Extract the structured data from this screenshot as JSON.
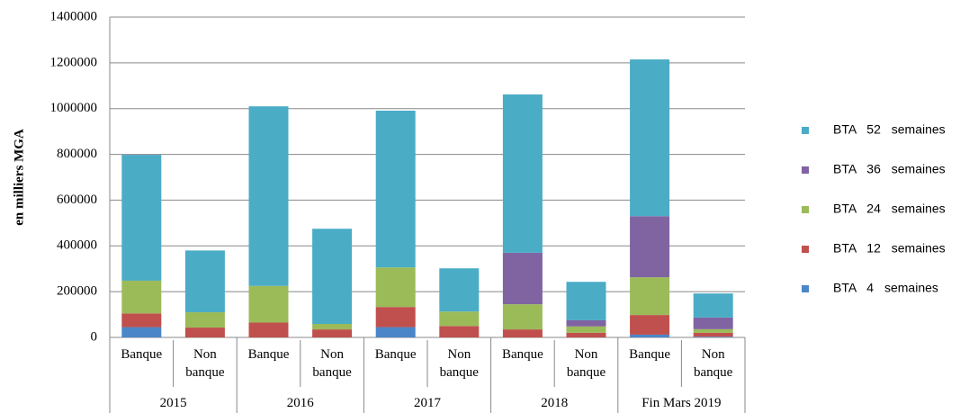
{
  "chart_data": {
    "type": "bar",
    "stacked": true,
    "y_label": "en milliers MGA",
    "categories": [
      "Banque",
      "Non banque",
      "Banque",
      "Non banque",
      "Banque",
      "Non banque",
      "Banque",
      "Non banque",
      "Banque",
      "Non banque"
    ],
    "groups": [
      "2015",
      "2016",
      "2017",
      "2018",
      "Fin Mars 2019"
    ],
    "series": [
      {
        "name": "BTA 4 semaines",
        "color": "#4a86c8",
        "values": [
          45000,
          0,
          0,
          0,
          45000,
          0,
          0,
          0,
          12000,
          3000
        ]
      },
      {
        "name": "BTA 12 semaines",
        "color": "#c0504d",
        "values": [
          60000,
          43000,
          65000,
          35000,
          88000,
          50000,
          35000,
          20000,
          86000,
          17000
        ]
      },
      {
        "name": "BTA 24 semaines",
        "color": "#9bbb59",
        "values": [
          143000,
          67000,
          160000,
          24000,
          173000,
          63000,
          110000,
          28000,
          165000,
          16000
        ]
      },
      {
        "name": "BTA 36 semaines",
        "color": "#8064a2",
        "values": [
          0,
          0,
          0,
          0,
          0,
          0,
          225000,
          27000,
          267000,
          51000
        ]
      },
      {
        "name": "BTA 52 semaines",
        "color": "#4bacc6",
        "values": [
          550000,
          270000,
          785000,
          416000,
          685000,
          189000,
          692000,
          168000,
          685000,
          105000
        ]
      }
    ],
    "ylim": [
      0,
      1400000
    ],
    "yticks": [
      0,
      200000,
      400000,
      600000,
      800000,
      1000000,
      1200000,
      1400000
    ],
    "grid": true,
    "legend": "right"
  }
}
